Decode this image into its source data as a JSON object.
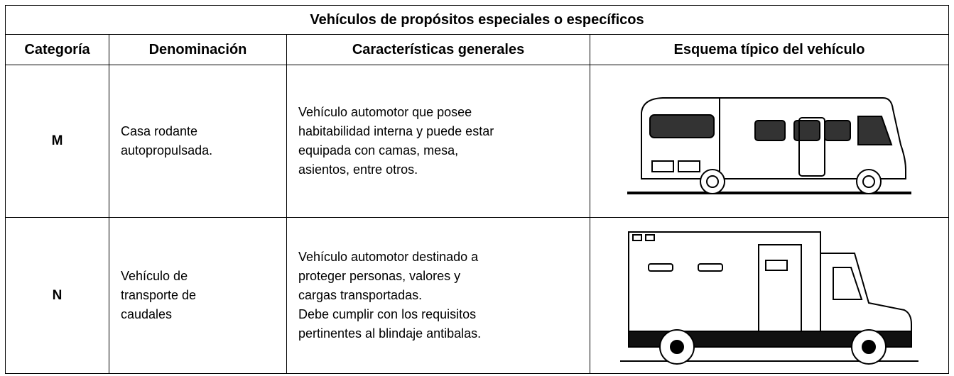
{
  "table": {
    "title": "Vehículos de propósitos especiales o específicos",
    "headers": [
      "Categoría",
      "Denominación",
      "Características generales",
      "Esquema típico del vehículo"
    ],
    "rows": [
      {
        "category": "M",
        "name": [
          "Casa rodante",
          "autopropulsada."
        ],
        "description": [
          "Vehículo automotor que posee",
          "habitabilidad interna y puede estar",
          "equipada con camas, mesa,",
          "asientos, entre otros."
        ]
      },
      {
        "category": "N",
        "name": [
          "Vehículo de",
          "transporte de",
          "caudales"
        ],
        "description": [
          "Vehículo automotor destinado a",
          "proteger personas, valores y",
          "cargas transportadas.",
          "Debe cumplir con los requisitos",
          "pertinentes al blindaje antibalas."
        ]
      }
    ]
  }
}
